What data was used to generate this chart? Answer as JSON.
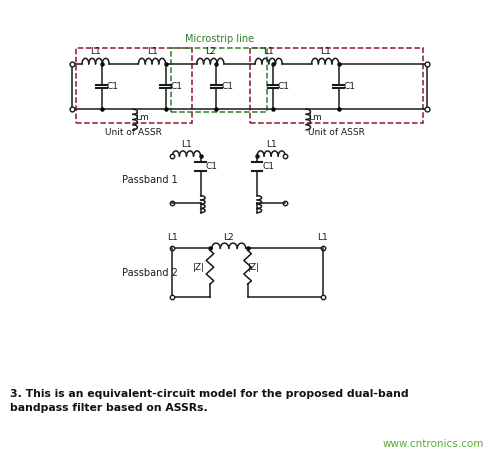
{
  "bg_color": "#f0ede3",
  "white_bg": "#ffffff",
  "dark_red": "#8b1a2a",
  "dark_green": "#2e7d32",
  "black": "#1a1a1a",
  "green_text": "#5aaa3a",
  "caption_text": "3. This is an equivalent-circuit model for the proposed dual-band\nbandpass filter based on ASSRs.",
  "website": "www.cntronics.com",
  "title_microstrip": "Microstrip line"
}
